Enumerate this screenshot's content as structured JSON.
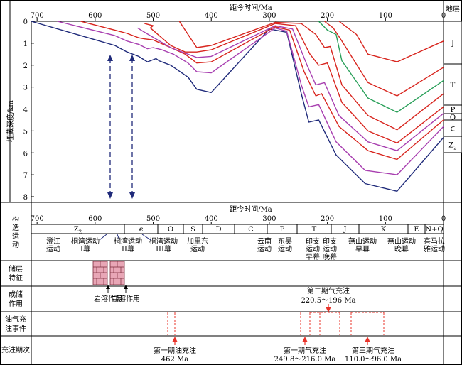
{
  "chart_data": {
    "type": "line",
    "title": "",
    "xlabel": "距今时间/Ma",
    "ylabel": "埋藏深度/km",
    "xlim": [
      710,
      0
    ],
    "ylim": [
      0,
      8
    ],
    "x_ticks": [
      "700",
      "600",
      "500",
      "400",
      "300",
      "200",
      "100",
      "0"
    ],
    "x_tick_values": [
      700,
      600,
      500,
      400,
      300,
      200,
      100,
      0
    ],
    "y_ticks": [
      "0",
      "1",
      "2",
      "3",
      "4",
      "5",
      "6",
      "7",
      "8"
    ],
    "y_tick_values": [
      0,
      1,
      2,
      3,
      4,
      5,
      6,
      7,
      8
    ],
    "grid": false,
    "series": [
      {
        "color": "#1f2a7a",
        "x": [
          710,
          566,
          545,
          525,
          510,
          495,
          490,
          470,
          440,
          425,
          400,
          300,
          270,
          245,
          232,
          215,
          185,
          135,
          80,
          0
        ],
        "y": [
          0,
          1.1,
          1.4,
          1.6,
          1.85,
          1.7,
          1.8,
          2.0,
          2.55,
          3.1,
          3.25,
          0.35,
          0.5,
          3.3,
          4.6,
          4.5,
          6.1,
          7.4,
          7.75,
          5.3
        ]
      },
      {
        "color": "#a83fb0",
        "x": [
          665,
          566,
          545,
          525,
          510,
          500,
          485,
          465,
          440,
          425,
          400,
          290,
          270,
          245,
          232,
          215,
          185,
          135,
          80,
          0
        ],
        "y": [
          0,
          0.65,
          0.9,
          1.05,
          1.25,
          1.2,
          1.3,
          1.5,
          1.9,
          2.3,
          2.35,
          0.3,
          0.45,
          2.9,
          3.9,
          3.8,
          5.5,
          6.8,
          7.0,
          4.8
        ]
      },
      {
        "color": "#d8251e",
        "x": [
          625,
          566,
          545,
          525,
          515,
          500,
          470,
          445,
          425,
          400,
          290,
          265,
          240,
          220,
          210,
          180,
          130,
          80,
          0
        ],
        "y": [
          0,
          0.4,
          0.55,
          0.75,
          0.8,
          0.85,
          1.2,
          1.5,
          1.9,
          1.85,
          0.25,
          0.4,
          2.3,
          3.4,
          3.3,
          4.8,
          5.9,
          6.3,
          4.5
        ]
      },
      {
        "color": "#a83fb0",
        "x": [
          527,
          515,
          470,
          445,
          425,
          400,
          290,
          260,
          235,
          220,
          205,
          180,
          130,
          80,
          0
        ],
        "y": [
          0.3,
          0.5,
          1.2,
          1.45,
          1.65,
          1.6,
          0.2,
          0.35,
          2.0,
          2.9,
          2.8,
          4.3,
          5.5,
          5.9,
          4.2
        ]
      },
      {
        "color": "#d8251e",
        "x": [
          515,
          500,
          505,
          470,
          445,
          425,
          400,
          290,
          255,
          230,
          215,
          200,
          175,
          130,
          80,
          0
        ],
        "y": [
          0.1,
          0.2,
          0.3,
          1.1,
          1.4,
          1.4,
          1.3,
          0.1,
          0.2,
          1.5,
          2.0,
          1.9,
          3.7,
          5.0,
          5.55,
          3.9
        ]
      },
      {
        "color": "#d8251e",
        "x": [
          455,
          425,
          400,
          290,
          245,
          220,
          205,
          195,
          175,
          130,
          80,
          0
        ],
        "y": [
          0,
          1.2,
          1.1,
          0.05,
          0.1,
          0.6,
          1.2,
          1.15,
          2.9,
          4.3,
          4.95,
          3.3
        ]
      },
      {
        "color": "#2aa05a",
        "x": [
          215,
          200,
          185,
          175,
          130,
          80,
          0
        ],
        "y": [
          0,
          0.4,
          0.6,
          1.8,
          3.5,
          4.15,
          2.7
        ]
      },
      {
        "color": "#d8251e",
        "x": [
          205,
          190,
          175,
          130,
          80,
          0
        ],
        "y": [
          0,
          0.3,
          0.9,
          2.8,
          3.4,
          2.1
        ]
      },
      {
        "color": "#d8251e",
        "x": [
          180,
          150,
          130,
          80,
          0
        ],
        "y": [
          0,
          0.6,
          1.5,
          1.85,
          0.9
        ]
      }
    ],
    "annotations": [
      "第二期气充注",
      "220.5～196 Ma",
      "第一期油充注",
      "462 Ma",
      "第一期气充注",
      "249.8～216.0 Ma",
      "第三期气充注",
      "110.0～96.0 Ma"
    ]
  },
  "labels": {
    "strata_header": "地层",
    "x_axis_title": "距今时间/Ma",
    "y_axis_title": "埋藏深度/km",
    "row_tectonic": "构造运动",
    "row_reservoir": "储层特征",
    "row_reservoir_diag": "成储作用",
    "row_events": "油气充注事件",
    "row_charging": "充注期次"
  },
  "strata_column": [
    "J",
    "T",
    "P",
    "O",
    "∈",
    "Z2"
  ],
  "periods": [
    "Z2",
    "∈",
    "O",
    "S",
    "D",
    "C",
    "P",
    "T",
    "J",
    "K",
    "E",
    "N+Q"
  ],
  "tectonic_events": [
    "澄江运动",
    "桐湾运动I幕",
    "桐湾运动II幕",
    "桐湾运动III幕",
    "加里东运动",
    "云南运动",
    "东吴运动",
    "印支运动早幕",
    "印支运动晚幕",
    "燕山运动早幕",
    "燕山运动晚幕",
    "喜马拉雅运动"
  ],
  "reservoir_labels": [
    "岩溶作用",
    "岩溶作用"
  ],
  "charging": [
    {
      "name": "第一期油充注",
      "age": "462 Ma",
      "ma": 462
    },
    {
      "name": "第一期气充注",
      "age": "249.8～216.0 Ma",
      "ma": 235
    },
    {
      "name": "第二期气充注",
      "age": "220.5～196 Ma",
      "ma": 196
    },
    {
      "name": "第三期气充注",
      "age": "110.0～96.0 Ma",
      "ma": 103
    }
  ]
}
